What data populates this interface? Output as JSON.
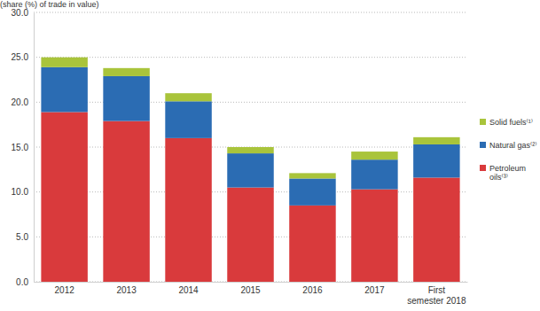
{
  "chart_data": {
    "type": "bar",
    "stacked": true,
    "y_label": "(share (%) of trade in value)",
    "categories": [
      "2012",
      "2013",
      "2014",
      "2015",
      "2016",
      "2017",
      "First semester 2018"
    ],
    "series": [
      {
        "name": "Petroleum oils⁽³⁾",
        "color": "#d93a3c",
        "values": [
          18.9,
          17.9,
          16.0,
          10.5,
          8.5,
          10.3,
          11.6
        ]
      },
      {
        "name": "Natural gas⁽²⁾",
        "color": "#2b6cb3",
        "values": [
          5.0,
          5.0,
          4.1,
          3.8,
          3.0,
          3.3,
          3.7
        ]
      },
      {
        "name": "Solid fuels⁽¹⁾",
        "color": "#a9c43b",
        "values": [
          1.1,
          0.9,
          0.9,
          0.7,
          0.6,
          0.9,
          0.8
        ]
      }
    ],
    "ylim": [
      0,
      30
    ],
    "yticks": [
      {
        "value": 0,
        "label": "0.0"
      },
      {
        "value": 5,
        "label": "5.0"
      },
      {
        "value": 10,
        "label": "10.0"
      },
      {
        "value": 15,
        "label": "15.0"
      },
      {
        "value": 20,
        "label": "20.0"
      },
      {
        "value": 25,
        "label": "25.0"
      },
      {
        "value": 30,
        "label": "30.0"
      }
    ],
    "grid": true,
    "legend": "right"
  }
}
